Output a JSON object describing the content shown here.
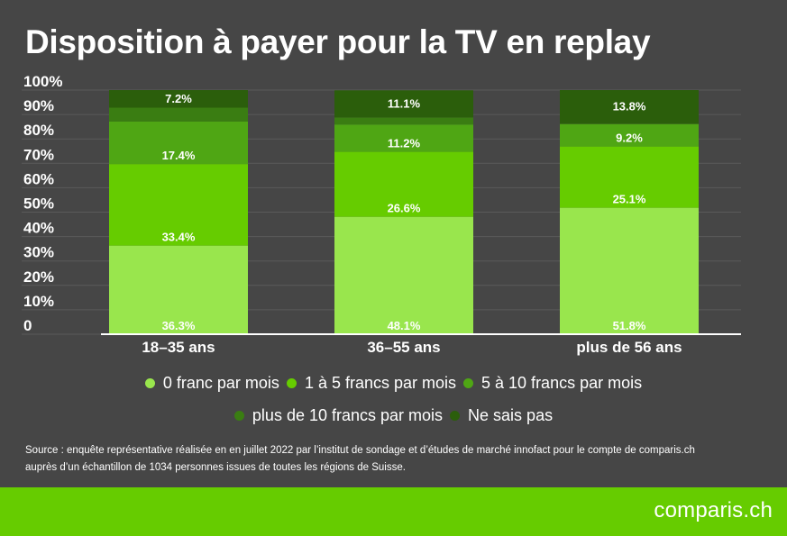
{
  "title": "Disposition à payer pour la TV en replay",
  "chart_data": {
    "type": "bar",
    "stacked": true,
    "categories": [
      "18–35 ans",
      "36–55 ans",
      "plus de 56 ans"
    ],
    "y_ticks": [
      "0",
      "10%",
      "20%",
      "30%",
      "40%",
      "50%",
      "60%",
      "70%",
      "80%",
      "90%",
      "100%"
    ],
    "ylim": [
      0,
      100
    ],
    "grid": true,
    "legend_position": "bottom",
    "series": [
      {
        "name": "0 franc par mois",
        "color": "#99e64d",
        "values": [
          36.3,
          48.1,
          51.8
        ],
        "labels": [
          "36.3%",
          "48.1%",
          "51.8%"
        ]
      },
      {
        "name": "1 à 5 francs par mois",
        "color": "#66cc00",
        "values": [
          33.4,
          26.6,
          25.1
        ],
        "labels": [
          "33.4%",
          "26.6%",
          "25.1%"
        ]
      },
      {
        "name": "5 à 10 francs par mois",
        "color": "#4fa614",
        "values": [
          17.4,
          11.2,
          9.2
        ],
        "labels": [
          "17.4%",
          "11.2%",
          "9.2%"
        ]
      },
      {
        "name": "plus de 10 francs par mois",
        "color": "#3a7d12",
        "values": [
          5.7,
          2.9,
          0.1
        ],
        "labels": [
          "",
          "",
          ""
        ]
      },
      {
        "name": "Ne sais pas",
        "color": "#2b5e0b",
        "values": [
          7.2,
          11.1,
          13.8
        ],
        "labels": [
          "7.2%",
          "11.1%",
          "13.8%"
        ]
      }
    ]
  },
  "legend_rows": [
    [
      "0 franc par mois",
      "1 à 5 francs par mois",
      "5 à 10 francs par mois"
    ],
    [
      "plus de 10 francs par mois",
      "Ne sais pas"
    ]
  ],
  "source_line1": "Source : enquête représentative réalisée en en juillet 2022 par l’institut de sondage et d’études de marché innofact pour le compte de comparis.ch",
  "source_line2": "auprès d’un échantillon de 1034 personnes issues de toutes les régions de Suisse.",
  "brand": "comparis.ch"
}
